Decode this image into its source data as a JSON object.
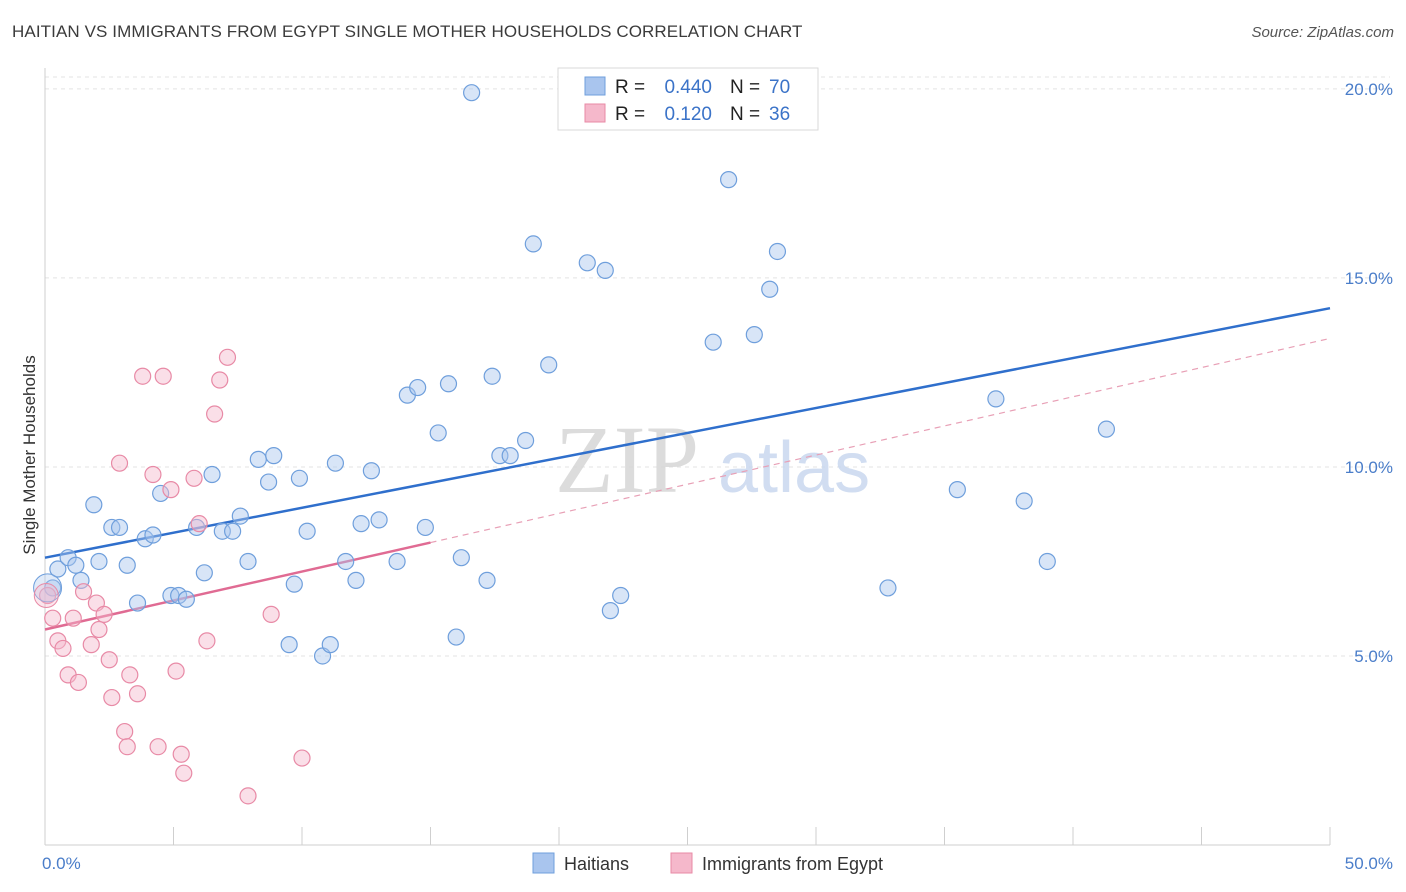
{
  "title": "HAITIAN VS IMMIGRANTS FROM EGYPT SINGLE MOTHER HOUSEHOLDS CORRELATION CHART",
  "source": "Source: ZipAtlas.com",
  "watermark": {
    "zip": "ZIP",
    "atlas": "atlas"
  },
  "chart_data": {
    "type": "scatter",
    "ylabel": "Single Mother Households",
    "xlim": [
      0,
      50
    ],
    "ylim": [
      0,
      20.5
    ],
    "x_ticks": [
      "0.0%",
      "50.0%"
    ],
    "y_ticks": [
      {
        "value": 5,
        "label": "5.0%"
      },
      {
        "value": 10,
        "label": "10.0%"
      },
      {
        "value": 15,
        "label": "15.0%"
      },
      {
        "value": 20,
        "label": "20.0%"
      }
    ],
    "legend": {
      "placement": "top-center",
      "rows": [
        {
          "r_label": "R =",
          "r_value": "0.440",
          "n_label": "N =",
          "n_value": "70",
          "color": "#a9c5ee"
        },
        {
          "r_label": "R =",
          "r_value": "0.120",
          "n_label": "N =",
          "n_value": "36",
          "color": "#f5b8cb"
        }
      ]
    },
    "series": [
      {
        "name": "Haitians",
        "color": "#a9c5ee",
        "stroke": "#6f9fdc",
        "trend": {
          "x": [
            0,
            50
          ],
          "y": [
            7.6,
            14.2
          ],
          "color": "#2f6fcc"
        },
        "points": [
          [
            0.3,
            6.8
          ],
          [
            0.5,
            7.3
          ],
          [
            0.9,
            7.6
          ],
          [
            1.2,
            7.4
          ],
          [
            1.4,
            7.0
          ],
          [
            1.9,
            9.0
          ],
          [
            2.1,
            7.5
          ],
          [
            2.6,
            8.4
          ],
          [
            2.9,
            8.4
          ],
          [
            3.2,
            7.4
          ],
          [
            3.6,
            6.4
          ],
          [
            3.9,
            8.1
          ],
          [
            4.2,
            8.2
          ],
          [
            4.5,
            9.3
          ],
          [
            4.9,
            6.6
          ],
          [
            5.2,
            6.6
          ],
          [
            5.5,
            6.5
          ],
          [
            5.9,
            8.4
          ],
          [
            6.2,
            7.2
          ],
          [
            6.5,
            9.8
          ],
          [
            6.9,
            8.3
          ],
          [
            7.3,
            8.3
          ],
          [
            7.6,
            8.7
          ],
          [
            7.9,
            7.5
          ],
          [
            8.3,
            10.2
          ],
          [
            8.7,
            9.6
          ],
          [
            8.9,
            10.3
          ],
          [
            9.5,
            5.3
          ],
          [
            9.7,
            6.9
          ],
          [
            9.9,
            9.7
          ],
          [
            10.2,
            8.3
          ],
          [
            10.8,
            5.0
          ],
          [
            11.1,
            5.3
          ],
          [
            11.3,
            10.1
          ],
          [
            11.7,
            7.5
          ],
          [
            12.1,
            7.0
          ],
          [
            12.3,
            8.5
          ],
          [
            12.7,
            9.9
          ],
          [
            13.0,
            8.6
          ],
          [
            13.7,
            7.5
          ],
          [
            14.1,
            11.9
          ],
          [
            14.5,
            12.1
          ],
          [
            14.8,
            8.4
          ],
          [
            15.3,
            10.9
          ],
          [
            15.7,
            12.2
          ],
          [
            16.0,
            5.5
          ],
          [
            16.2,
            7.6
          ],
          [
            16.6,
            19.9
          ],
          [
            17.2,
            7.0
          ],
          [
            17.4,
            12.4
          ],
          [
            17.7,
            10.3
          ],
          [
            18.1,
            10.3
          ],
          [
            18.7,
            10.7
          ],
          [
            19.0,
            15.9
          ],
          [
            19.6,
            12.7
          ],
          [
            21.1,
            15.4
          ],
          [
            21.8,
            15.2
          ],
          [
            22.0,
            6.2
          ],
          [
            22.4,
            6.6
          ],
          [
            26.0,
            13.3
          ],
          [
            26.6,
            17.6
          ],
          [
            27.6,
            13.5
          ],
          [
            28.2,
            14.7
          ],
          [
            28.5,
            15.7
          ],
          [
            32.8,
            6.8
          ],
          [
            35.5,
            9.4
          ],
          [
            37.0,
            11.8
          ],
          [
            38.1,
            9.1
          ],
          [
            39.0,
            7.5
          ],
          [
            41.3,
            11.0
          ]
        ]
      },
      {
        "name": "Immigrants from Egypt",
        "color": "#f5b8cb",
        "stroke": "#e88aa6",
        "trend": {
          "x": [
            0,
            15
          ],
          "y": [
            5.7,
            8.0
          ],
          "color": "#e06b93"
        },
        "trend_ext": {
          "x": [
            15,
            50
          ],
          "y": [
            8.0,
            13.4
          ],
          "color": "#e8a0b6"
        },
        "points": [
          [
            0.1,
            6.6
          ],
          [
            0.3,
            6.0
          ],
          [
            0.5,
            5.4
          ],
          [
            0.7,
            5.2
          ],
          [
            0.9,
            4.5
          ],
          [
            1.1,
            6.0
          ],
          [
            1.3,
            4.3
          ],
          [
            1.5,
            6.7
          ],
          [
            1.8,
            5.3
          ],
          [
            2.0,
            6.4
          ],
          [
            2.1,
            5.7
          ],
          [
            2.3,
            6.1
          ],
          [
            2.5,
            4.9
          ],
          [
            2.6,
            3.9
          ],
          [
            2.9,
            10.1
          ],
          [
            3.1,
            3.0
          ],
          [
            3.2,
            2.6
          ],
          [
            3.3,
            4.5
          ],
          [
            3.6,
            4.0
          ],
          [
            3.8,
            12.4
          ],
          [
            4.2,
            9.8
          ],
          [
            4.4,
            2.6
          ],
          [
            4.6,
            12.4
          ],
          [
            4.9,
            9.4
          ],
          [
            5.1,
            4.6
          ],
          [
            5.3,
            2.4
          ],
          [
            5.4,
            1.9
          ],
          [
            5.8,
            9.7
          ],
          [
            6.0,
            8.5
          ],
          [
            6.3,
            5.4
          ],
          [
            6.6,
            11.4
          ],
          [
            6.8,
            12.3
          ],
          [
            7.1,
            12.9
          ],
          [
            7.9,
            1.3
          ],
          [
            8.8,
            6.1
          ],
          [
            10.0,
            2.3
          ]
        ]
      }
    ]
  }
}
